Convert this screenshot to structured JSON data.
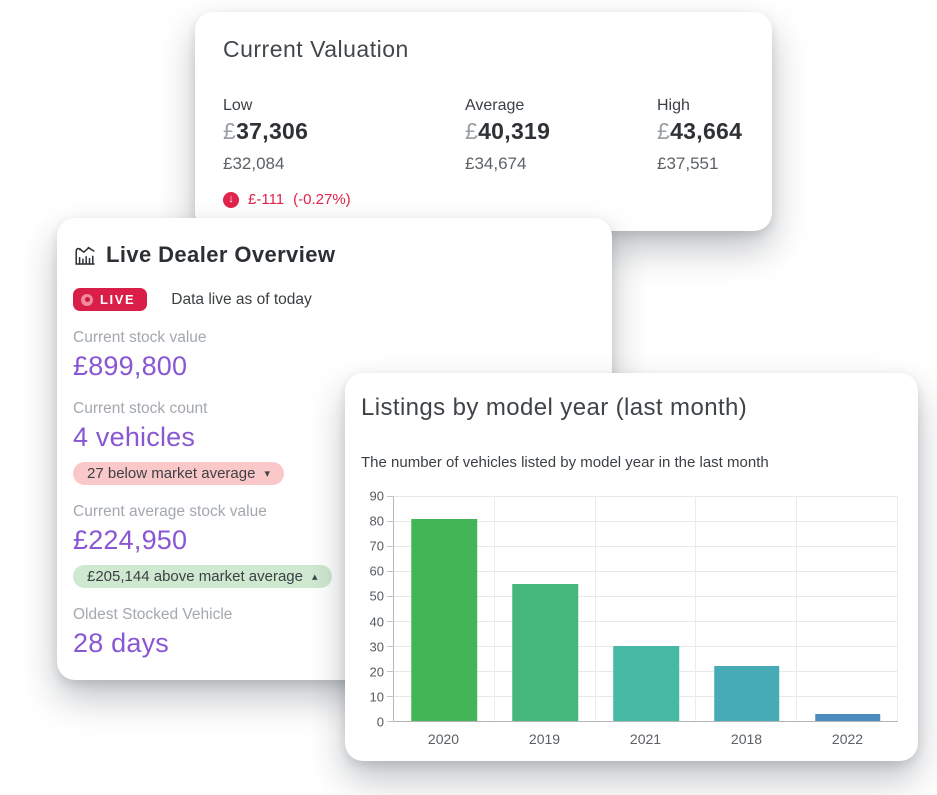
{
  "colors": {
    "accent_purple": "#8957d3",
    "negative_red": "#e0244a",
    "live_red": "#d91f47",
    "pill_pink_bg": "#fac8c8",
    "pill_green_bg": "#cfe8d0"
  },
  "valuation": {
    "title": "Current Valuation",
    "columns": [
      {
        "label": "Low",
        "currency": "£",
        "value": "37,306",
        "secondary": "£32,084"
      },
      {
        "label": "Average",
        "currency": "£",
        "value": "40,319",
        "secondary": "£34,674"
      },
      {
        "label": "High",
        "currency": "£",
        "value": "43,664",
        "secondary": "£37,551"
      }
    ],
    "change": {
      "icon_glyph": "↓",
      "amount": "£-111",
      "percent": "(-0.27%)"
    }
  },
  "overview": {
    "title": "Live Dealer Overview",
    "live_badge": "LIVE",
    "live_text": "Data live as of today",
    "stats": [
      {
        "label": "Current stock value",
        "value": "£899,800"
      },
      {
        "label": "Current stock count",
        "value": "4 vehicles",
        "badge": {
          "text": "27 below market average",
          "arrow": "▾"
        }
      },
      {
        "label": "Current average stock value",
        "value": "£224,950",
        "badge": {
          "text": "£205,144 above market average",
          "arrow": "▴"
        }
      },
      {
        "label": "Oldest Stocked Vehicle",
        "value": "28 days"
      }
    ]
  },
  "chart_data": {
    "type": "bar",
    "title": "Listings by model year (last month)",
    "subtitle": "The number of vehicles listed by model year in the last month",
    "categories": [
      "2020",
      "2019",
      "2021",
      "2018",
      "2022"
    ],
    "values": [
      81,
      55,
      30,
      22,
      3
    ],
    "bar_colors": [
      "#44b556",
      "#46b87e",
      "#47b8a3",
      "#46abb5",
      "#4a8cbf"
    ],
    "ylim": [
      0,
      90
    ],
    "ytick_step": 10,
    "yticks": [
      0,
      10,
      20,
      30,
      40,
      50,
      60,
      70,
      80,
      90
    ],
    "grid": true,
    "xlabel": "",
    "ylabel": ""
  }
}
